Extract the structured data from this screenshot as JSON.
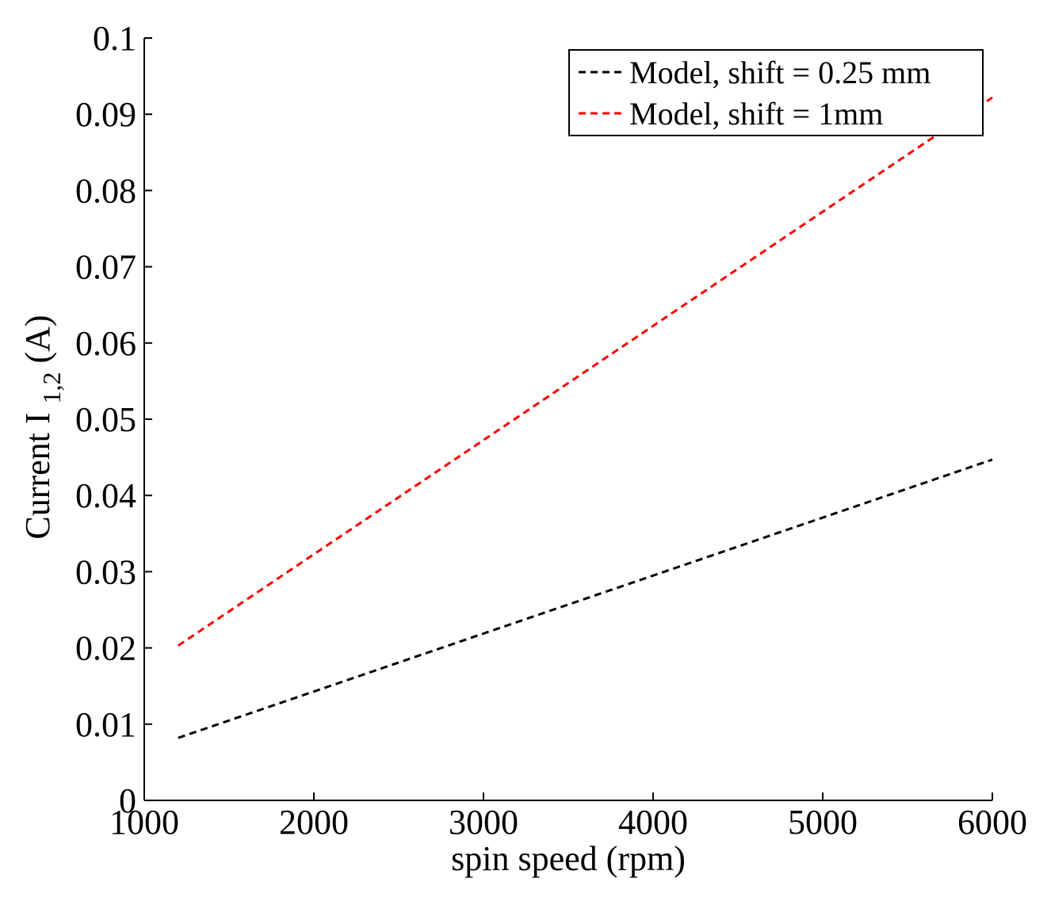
{
  "chart_data": {
    "type": "line",
    "title": "",
    "xlabel": "spin speed (rpm)",
    "ylabel": {
      "main": "Current I",
      "subscript": "1,2",
      "suffix": " (A)"
    },
    "xlim": [
      1000,
      6000
    ],
    "ylim": [
      0,
      0.1
    ],
    "xticks": [
      1000,
      2000,
      3000,
      4000,
      5000,
      6000
    ],
    "yticks": [
      0,
      0.01,
      0.02,
      0.03,
      0.04,
      0.05,
      0.06,
      0.07,
      0.08,
      0.09,
      0.1
    ],
    "xtick_labels": [
      "1000",
      "2000",
      "3000",
      "4000",
      "5000",
      "6000"
    ],
    "ytick_labels": [
      "0",
      "0.01",
      "0.02",
      "0.03",
      "0.04",
      "0.05",
      "0.06",
      "0.07",
      "0.08",
      "0.09",
      "0.1"
    ],
    "grid": false,
    "legend_position": "top-right",
    "series": [
      {
        "name": "Model, shift = 0.25 mm",
        "color": "#000000",
        "style": "dashed",
        "x": [
          1200,
          6000
        ],
        "y": [
          0.0082,
          0.0447
        ]
      },
      {
        "name": "Model, shift = 1mm",
        "color": "#ff0000",
        "style": "dashed",
        "x": [
          1200,
          6000
        ],
        "y": [
          0.0203,
          0.0922
        ]
      }
    ]
  }
}
